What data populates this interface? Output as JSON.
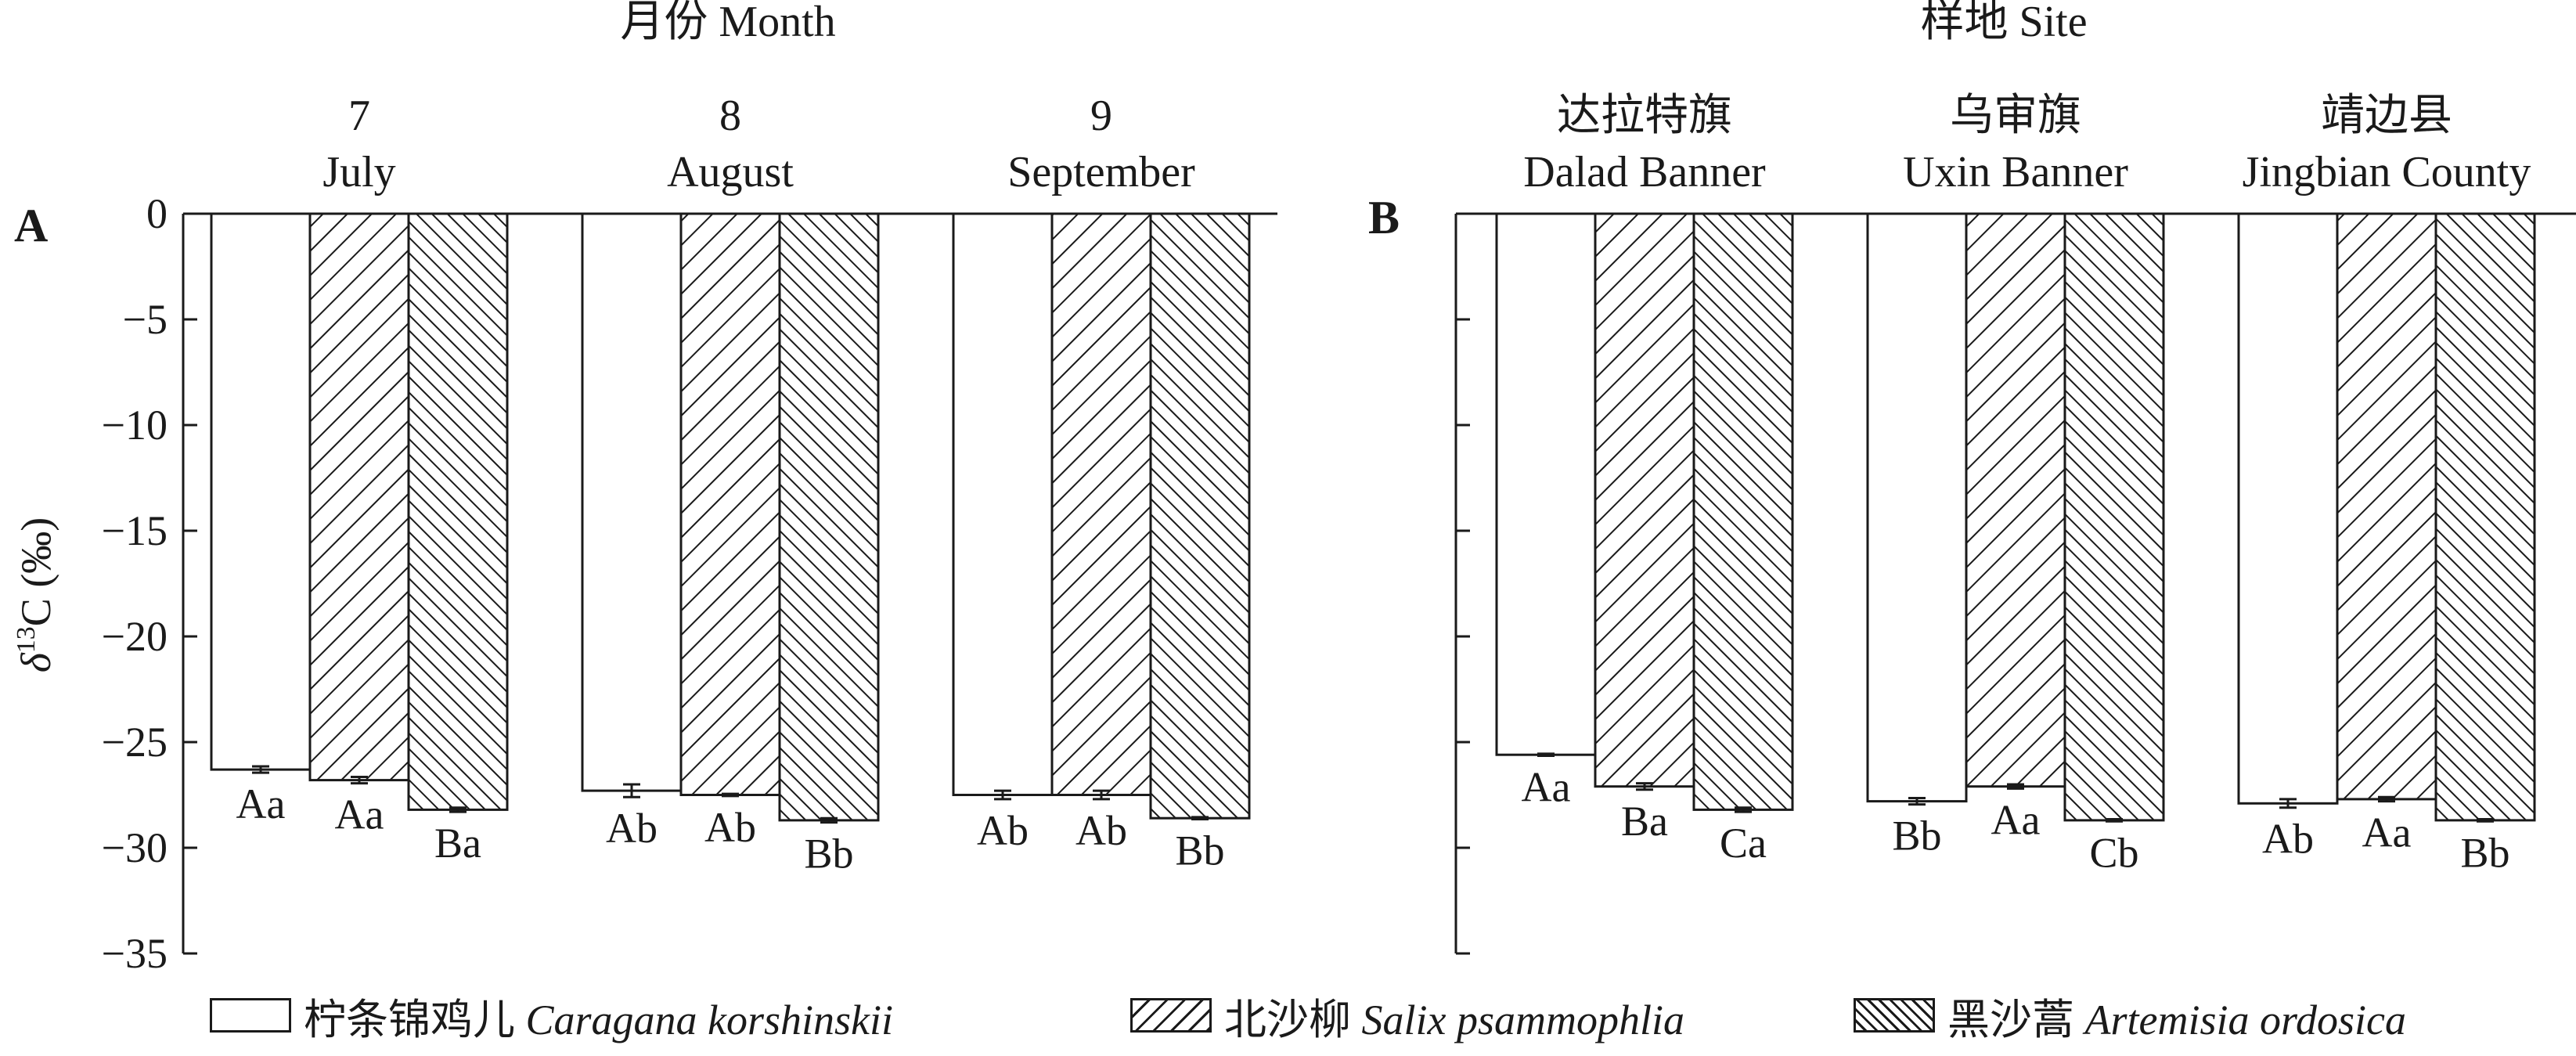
{
  "chart_data": [
    {
      "type": "bar",
      "panel_label": "A",
      "group_title": "月份 Month",
      "ylabel_prefix": "δ",
      "ylabel_sup": "13",
      "ylabel_rest": "C (‰)",
      "ylim": [
        -35,
        0
      ],
      "yticks": [
        0,
        -5,
        -10,
        -15,
        -20,
        -25,
        -30,
        -35
      ],
      "ytick_labels": [
        "0",
        "−5",
        "−10",
        "−15",
        "−20",
        "−25",
        "−30",
        "−35"
      ],
      "categories": [
        {
          "line1": "7",
          "line2": "July"
        },
        {
          "line1": "8",
          "line2": "August"
        },
        {
          "line1": "9",
          "line2": "September"
        }
      ],
      "series": [
        {
          "values": [
            -26.3,
            -27.3,
            -27.5
          ],
          "errors": [
            0.15,
            0.3,
            0.2
          ],
          "letters": [
            "Aa",
            "Ab",
            "Ab"
          ]
        },
        {
          "values": [
            -26.8,
            -27.5,
            -27.5
          ],
          "errors": [
            0.15,
            0.05,
            0.2
          ],
          "letters": [
            "Aa",
            "Ab",
            "Ab"
          ]
        },
        {
          "values": [
            -28.2,
            -28.7,
            -28.6
          ],
          "errors": [
            0.1,
            0.1,
            0.05
          ],
          "letters": [
            "Ba",
            "Bb",
            "Bb"
          ]
        }
      ]
    },
    {
      "type": "bar",
      "panel_label": "B",
      "group_title": "样地 Site",
      "ylim": [
        -35,
        0
      ],
      "categories": [
        {
          "line1": "达拉特旗",
          "line2": "Dalad Banner"
        },
        {
          "line1": "乌审旗",
          "line2": "Uxin Banner"
        },
        {
          "line1": "靖边县",
          "line2": "Jingbian County"
        }
      ],
      "series": [
        {
          "values": [
            -25.6,
            -27.8,
            -27.9
          ],
          "errors": [
            0.05,
            0.15,
            0.2
          ],
          "letters": [
            "Aa",
            "Bb",
            "Ab"
          ]
        },
        {
          "values": [
            -27.1,
            -27.1,
            -27.7
          ],
          "errors": [
            0.15,
            0.1,
            0.1
          ],
          "letters": [
            "Ba",
            "Aa",
            "Aa"
          ]
        },
        {
          "values": [
            -28.2,
            -28.7,
            -28.7
          ],
          "errors": [
            0.1,
            0.05,
            0.05
          ],
          "letters": [
            "Ca",
            "Cb",
            "Bb"
          ]
        }
      ]
    }
  ],
  "legend": [
    {
      "cn": "柠条锦鸡儿",
      "sci": "Caragana korshinskii",
      "pattern": "none"
    },
    {
      "cn": "北沙柳",
      "sci": "Salix psammophlia",
      "pattern": "forward-hatch"
    },
    {
      "cn": "黑沙蒿",
      "sci": "Artemisia ordosica",
      "pattern": "dense-back-hatch"
    }
  ]
}
